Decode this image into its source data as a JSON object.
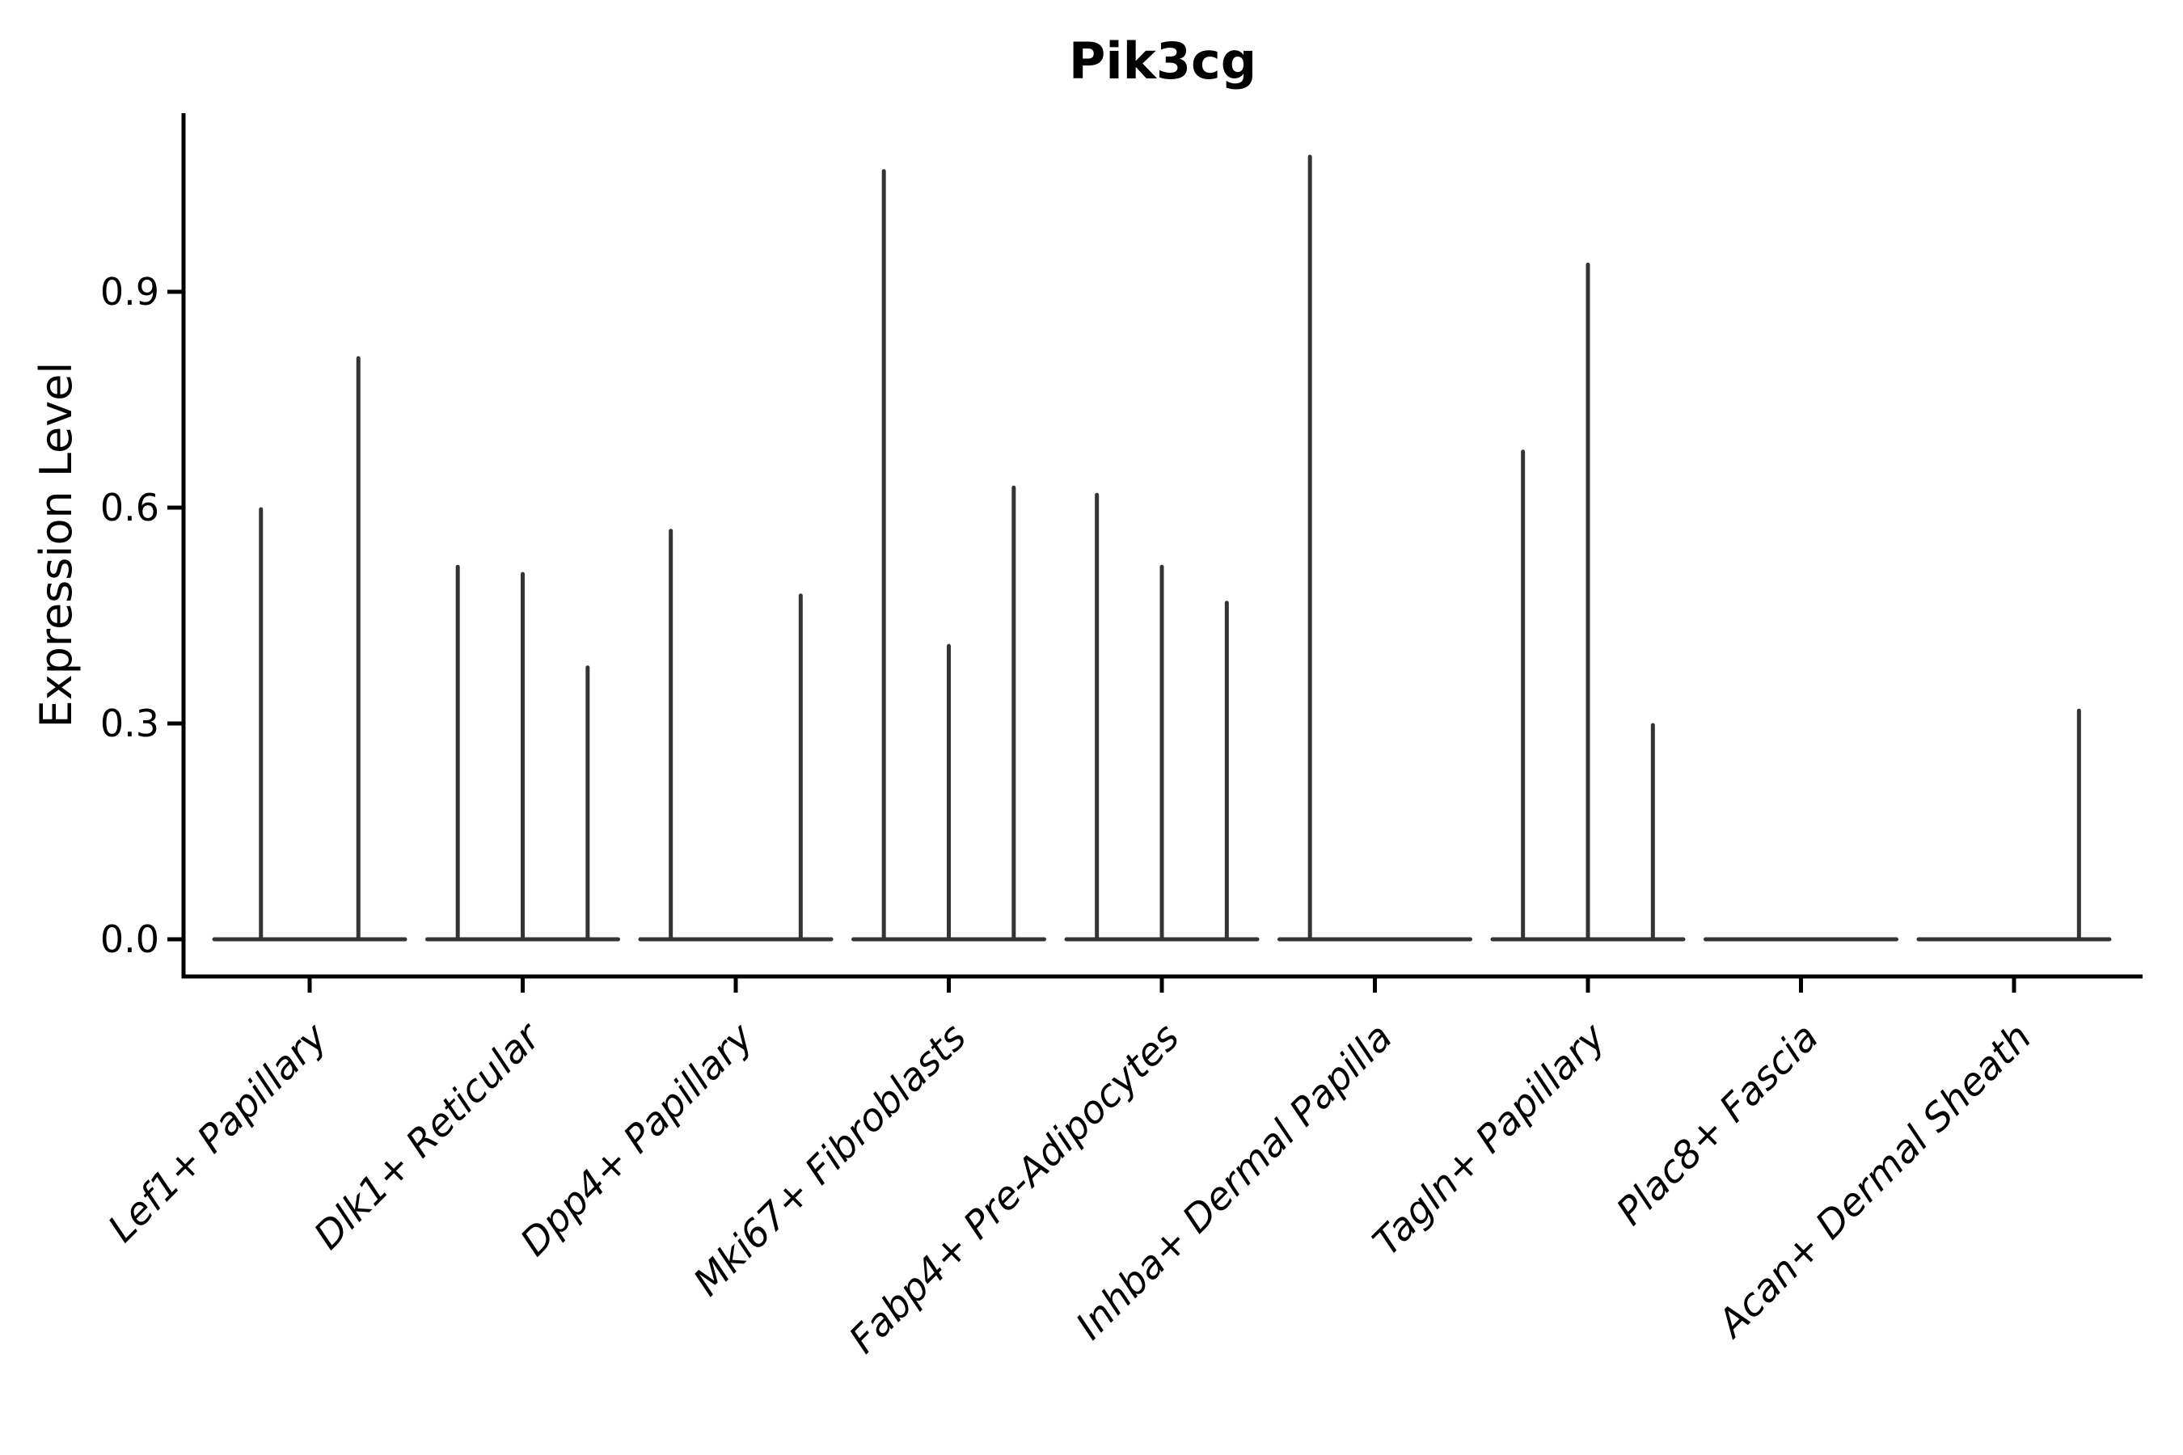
{
  "chart_data": {
    "type": "violin",
    "title": "Pik3cg",
    "ylabel": "Expression Level",
    "xlabel": "",
    "yticks_labels": [
      "0.0",
      "0.3",
      "0.6",
      "0.9"
    ],
    "yticks_values": [
      0.0,
      0.3,
      0.6,
      0.9
    ],
    "ylim": [
      -0.05,
      1.15
    ],
    "grid": false,
    "legend": "none",
    "xtick_rotation": 45,
    "categories": [
      "Lef1+ Papillary",
      "Dlk1+ Reticular",
      "Dpp4+ Papillary",
      "Mki67+ Fibroblasts",
      "Fabp4+ Pre-Adipocytes",
      "Inhba+ Dermal Papilla",
      "Tagln+ Papillary",
      "Plac8+ Fascia",
      "Acan+ Dermal Sheath"
    ],
    "groups": [
      {
        "category": "Lef1+ Papillary",
        "violin_maxima": [
          0.6,
          0.81
        ]
      },
      {
        "category": "Dlk1+ Reticular",
        "violin_maxima": [
          0.52,
          0.51,
          0.38
        ]
      },
      {
        "category": "Dpp4+ Papillary",
        "violin_maxima": [
          0.57,
          0.0,
          0.48
        ]
      },
      {
        "category": "Mki67+ Fibroblasts",
        "violin_maxima": [
          1.07,
          0.41,
          0.63
        ]
      },
      {
        "category": "Fabp4+ Pre-Adipocytes",
        "violin_maxima": [
          0.62,
          0.52,
          0.47
        ]
      },
      {
        "category": "Inhba+ Dermal Papilla",
        "violin_maxima": [
          1.09,
          0.0,
          0.0
        ]
      },
      {
        "category": "Tagln+ Papillary",
        "violin_maxima": [
          0.68,
          0.94,
          0.3
        ]
      },
      {
        "category": "Plac8+ Fascia",
        "violin_maxima": [
          0.0,
          0.0,
          0.0
        ]
      },
      {
        "category": "Acan+ Dermal Sheath",
        "violin_maxima": [
          0.0,
          0.0,
          0.32
        ]
      }
    ],
    "colors": {
      "violin": "#343434",
      "axis": "#000000",
      "text": "#000000",
      "background": "#ffffff"
    }
  }
}
